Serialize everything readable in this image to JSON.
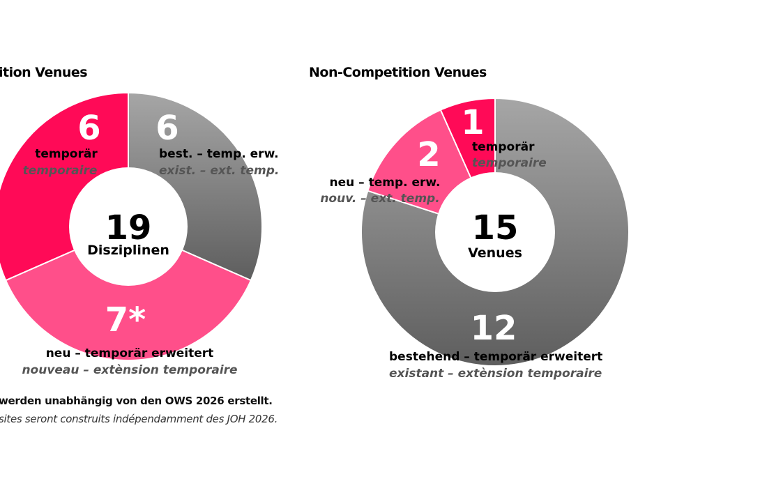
{
  "colors": {
    "dark_pink": "#ff0a57",
    "light_pink": "#ff4f8a",
    "gray_light": "#a6a6a6",
    "gray_dark": "#5e5e5e",
    "white": "#ffffff"
  },
  "left_title": "ition Venues",
  "right_title": "Non-Competition Venues",
  "footnote": {
    "de": "werden unabhängig von den OWS 2026 erstellt.",
    "fr": "sites seront construits indépendamment des JOH 2026."
  },
  "chart_data": [
    {
      "type": "pie",
      "title": "ition Venues",
      "center_value": "19",
      "center_label": "Disziplinen",
      "slices": [
        {
          "value": 6,
          "display": "6",
          "label_de": "best. – temp. erw.",
          "label_fr": "exist. – ext. temp.",
          "color": "gradient-gray"
        },
        {
          "value": 7,
          "display": "7*",
          "label_de": "neu – temporär erweitert",
          "label_fr": "nouveau – extènsion temporaire",
          "color": "#ff4f8a"
        },
        {
          "value": 6,
          "display": "6",
          "label_de": "temporär",
          "label_fr": "temporaire",
          "color": "#ff0a57"
        }
      ]
    },
    {
      "type": "pie",
      "title": "Non-Competition Venues",
      "center_value": "15",
      "center_label": "Venues",
      "slices": [
        {
          "value": 12,
          "display": "12",
          "label_de": "bestehend – temporär erweitert",
          "label_fr": "existant – extènsion temporaire",
          "color": "gradient-gray"
        },
        {
          "value": 2,
          "display": "2",
          "label_de": "neu – temp. erw.",
          "label_fr": "nouv. – ext. temp.",
          "color": "#ff4f8a"
        },
        {
          "value": 1,
          "display": "1",
          "label_de": "temporär",
          "label_fr": "temporaire",
          "color": "#ff0a57"
        }
      ]
    }
  ]
}
